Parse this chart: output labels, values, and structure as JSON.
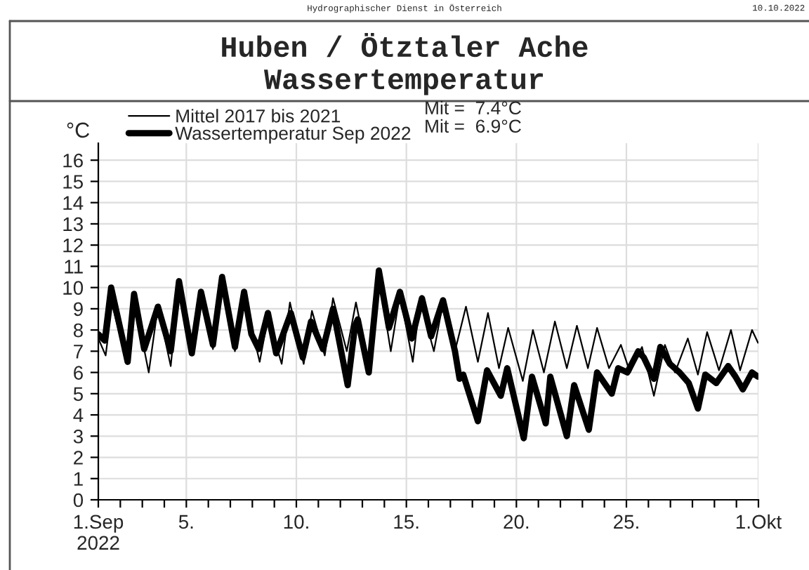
{
  "chart_data": {
    "type": "line",
    "title": "Huben / Ötztaler Ache",
    "subtitle": "Wassertemperatur",
    "ylabel": "°C",
    "annotations": [
      "Hydrographischer Dienst in Österreich",
      "10.10.2022",
      "Mit =  7.4°C",
      "Mit =  6.9°C"
    ],
    "series": [
      {
        "name": "Mittel 2017 bis 2021",
        "color": "#000000",
        "line_style": "solid",
        "x": [
          "2022-09-01T00:00",
          "2022-09-01T08:00",
          "2022-09-01T15:00",
          "2022-09-02T07:00",
          "2022-09-02T15:00",
          "2022-09-03T07:00",
          "2022-09-03T17:00",
          "2022-09-04T07:00",
          "2022-09-04T16:00",
          "2022-09-05T06:00",
          "2022-09-05T16:00",
          "2022-09-06T05:00",
          "2022-09-06T15:00",
          "2022-09-07T05:00",
          "2022-09-07T15:00",
          "2022-09-08T08:00",
          "2022-09-08T17:00",
          "2022-09-09T08:00",
          "2022-09-09T17:00",
          "2022-09-10T08:00",
          "2022-09-10T17:00",
          "2022-09-11T07:00",
          "2022-09-11T16:00",
          "2022-09-12T07:00",
          "2022-09-12T17:00",
          "2022-09-13T07:00",
          "2022-09-13T18:00",
          "2022-09-14T07:00",
          "2022-09-14T17:00",
          "2022-09-15T07:00",
          "2022-09-15T15:00",
          "2022-09-16T06:00",
          "2022-09-16T16:00",
          "2022-09-17T05:00",
          "2022-09-17T17:00",
          "2022-09-18T06:00",
          "2022-09-18T17:00",
          "2022-09-19T05:00",
          "2022-09-19T15:00",
          "2022-09-20T07:00",
          "2022-09-20T18:00",
          "2022-09-21T06:00",
          "2022-09-21T18:00",
          "2022-09-22T07:00",
          "2022-09-22T18:00",
          "2022-09-23T06:00",
          "2022-09-23T16:00",
          "2022-09-24T05:00",
          "2022-09-24T18:00",
          "2022-09-25T04:00",
          "2022-09-25T17:00",
          "2022-09-26T06:00",
          "2022-09-26T18:00",
          "2022-09-27T05:00",
          "2022-09-27T19:00",
          "2022-09-28T06:00",
          "2022-09-28T16:00",
          "2022-09-29T05:00",
          "2022-09-29T18:00",
          "2022-09-30T04:00",
          "2022-09-30T17:00",
          "2022-09-30T23:30"
        ],
        "values": [
          7.6,
          6.8,
          9.2,
          6.5,
          9.5,
          6.0,
          9.1,
          6.3,
          10.2,
          6.9,
          9.7,
          7.1,
          10.3,
          7.0,
          9.6,
          6.5,
          8.6,
          6.4,
          9.3,
          6.4,
          8.9,
          6.8,
          9.5,
          7.0,
          9.3,
          6.3,
          10.5,
          7.0,
          9.7,
          6.5,
          9.4,
          7.0,
          9.3,
          7.0,
          9.1,
          6.5,
          8.8,
          6.2,
          8.1,
          5.6,
          8.0,
          6.0,
          8.4,
          6.2,
          8.2,
          6.2,
          8.1,
          6.2,
          7.3,
          6.0,
          7.2,
          4.9,
          7.3,
          6.0,
          7.6,
          5.9,
          7.9,
          6.1,
          8.0,
          6.1,
          8.0,
          7.4
        ]
      },
      {
        "name": "Wassertemperatur Sep 2022",
        "color": "#000000",
        "line_style": "solid",
        "x": [
          "2022-09-01T00:00",
          "2022-09-01T07:00",
          "2022-09-01T14:00",
          "2022-09-02T08:00",
          "2022-09-02T15:00",
          "2022-09-03T02:00",
          "2022-09-03T17:00",
          "2022-09-04T07:00",
          "2022-09-04T16:00",
          "2022-09-05T06:00",
          "2022-09-05T16:00",
          "2022-09-06T05:00",
          "2022-09-06T15:00",
          "2022-09-07T05:00",
          "2022-09-07T15:00",
          "2022-09-07T23:00",
          "2022-09-08T07:00",
          "2022-09-08T17:00",
          "2022-09-09T02:00",
          "2022-09-09T18:00",
          "2022-09-10T07:00",
          "2022-09-10T16:00",
          "2022-09-11T05:00",
          "2022-09-11T16:00",
          "2022-09-12T08:00",
          "2022-09-12T16:00",
          "2022-09-12T19:00",
          "2022-09-13T07:00",
          "2022-09-13T18:00",
          "2022-09-14T05:00",
          "2022-09-14T17:00",
          "2022-09-15T06:00",
          "2022-09-15T17:00",
          "2022-09-16T03:00",
          "2022-09-16T16:00",
          "2022-09-17T05:00",
          "2022-09-17T10:00",
          "2022-09-17T14:00",
          "2022-09-18T06:00",
          "2022-09-18T16:00",
          "2022-09-19T07:00",
          "2022-09-19T14:00",
          "2022-09-20T08:00",
          "2022-09-20T17:00",
          "2022-09-21T08:00",
          "2022-09-21T13:00",
          "2022-09-22T07:00",
          "2022-09-22T15:00",
          "2022-09-23T07:00",
          "2022-09-23T16:00",
          "2022-09-24T08:00",
          "2022-09-24T15:00",
          "2022-09-25T01:00",
          "2022-09-25T13:00",
          "2022-09-25T19:00",
          "2022-09-26T06:00",
          "2022-09-26T13:00",
          "2022-09-26T23:30",
          "2022-09-27T10:00",
          "2022-09-27T20:00",
          "2022-09-28T06:00",
          "2022-09-28T14:00",
          "2022-09-29T02:00",
          "2022-09-29T15:00",
          "2022-09-29T23:00",
          "2022-09-30T07:00",
          "2022-09-30T17:00",
          "2022-09-30T23:30"
        ],
        "values": [
          7.8,
          7.5,
          10.0,
          6.5,
          9.7,
          7.1,
          9.1,
          7.0,
          10.3,
          6.9,
          9.8,
          7.3,
          10.5,
          7.2,
          9.8,
          7.8,
          7.1,
          8.8,
          6.9,
          8.8,
          6.7,
          8.4,
          7.1,
          9.0,
          5.4,
          8.2,
          8.5,
          6.0,
          10.8,
          8.1,
          9.8,
          7.6,
          9.5,
          7.7,
          9.4,
          7.0,
          5.7,
          5.9,
          3.7,
          6.1,
          4.9,
          6.2,
          2.9,
          5.8,
          3.6,
          5.8,
          3.0,
          5.4,
          3.3,
          6.0,
          5.0,
          6.2,
          6.0,
          7.0,
          6.7,
          5.7,
          7.2,
          6.4,
          6.0,
          5.5,
          4.3,
          5.9,
          5.5,
          6.3,
          5.8,
          5.2,
          6.0,
          5.8
        ]
      }
    ],
    "xlim": [
      "2022-09-01",
      "2022-10-01"
    ],
    "ylim": [
      0,
      16.8
    ],
    "xticks": [
      {
        "value": "2022-09-01",
        "label": "1.Sep\n2022"
      },
      {
        "value": "2022-09-02",
        "label": null
      },
      {
        "value": "2022-09-03",
        "label": null
      },
      {
        "value": "2022-09-04",
        "label": null
      },
      {
        "value": "2022-09-05",
        "label": "5."
      },
      {
        "value": "2022-09-06",
        "label": null
      },
      {
        "value": "2022-09-07",
        "label": null
      },
      {
        "value": "2022-09-08",
        "label": null
      },
      {
        "value": "2022-09-09",
        "label": null
      },
      {
        "value": "2022-09-10",
        "label": "10."
      },
      {
        "value": "2022-09-11",
        "label": null
      },
      {
        "value": "2022-09-12",
        "label": null
      },
      {
        "value": "2022-09-13",
        "label": null
      },
      {
        "value": "2022-09-14",
        "label": null
      },
      {
        "value": "2022-09-15",
        "label": "15."
      },
      {
        "value": "2022-09-16",
        "label": null
      },
      {
        "value": "2022-09-17",
        "label": null
      },
      {
        "value": "2022-09-18",
        "label": null
      },
      {
        "value": "2022-09-19",
        "label": null
      },
      {
        "value": "2022-09-20",
        "label": "20."
      },
      {
        "value": "2022-09-21",
        "label": null
      },
      {
        "value": "2022-09-22",
        "label": null
      },
      {
        "value": "2022-09-23",
        "label": null
      },
      {
        "value": "2022-09-24",
        "label": null
      },
      {
        "value": "2022-09-25",
        "label": "25."
      },
      {
        "value": "2022-09-26",
        "label": null
      },
      {
        "value": "2022-09-27",
        "label": null
      },
      {
        "value": "2022-09-28",
        "label": null
      },
      {
        "value": "2022-09-29",
        "label": null
      },
      {
        "value": "2022-09-30",
        "label": null
      },
      {
        "value": "2022-10-01",
        "label": "1.Okt"
      }
    ],
    "yticks": [
      0,
      1,
      2,
      3,
      4,
      5,
      6,
      7,
      8,
      9,
      10,
      11,
      12,
      13,
      14,
      15,
      16
    ],
    "grid": true,
    "legend": "top left"
  }
}
